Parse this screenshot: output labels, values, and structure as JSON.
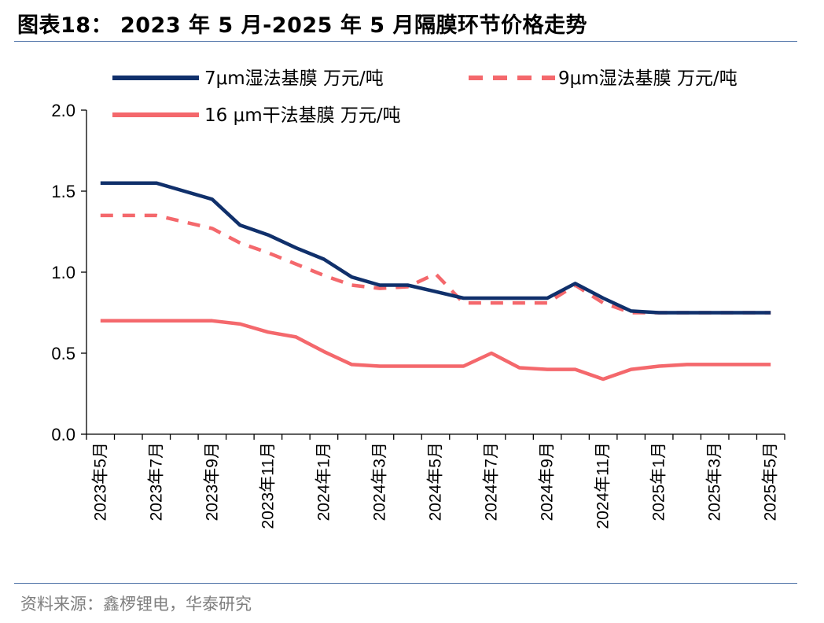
{
  "figure": {
    "title": "图表18： 2023 年 5 月-2025 年 5 月隔膜环节价格走势",
    "source": "资料来源：鑫椤锂电，华泰研究"
  },
  "colors": {
    "navy": "#10306b",
    "salmon": "#f4686c",
    "rule": "#4a6fa5",
    "axis": "#000000"
  },
  "chart_data": {
    "type": "line",
    "title": "",
    "xlabel": "",
    "ylabel": "",
    "ylim": [
      0,
      2.0
    ],
    "yticks": [
      "0.0",
      "0.5",
      "1.0",
      "1.5",
      "2.0"
    ],
    "grid": false,
    "legend_position": "top",
    "x": [
      "2023年5月",
      "2023年6月",
      "2023年7月",
      "2023年8月",
      "2023年9月",
      "2023年10月",
      "2023年11月",
      "2023年12月",
      "2024年1月",
      "2024年2月",
      "2024年3月",
      "2024年4月",
      "2024年5月",
      "2024年6月",
      "2024年7月",
      "2024年8月",
      "2024年9月",
      "2024年10月",
      "2024年11月",
      "2024年12月",
      "2025年1月",
      "2025年2月",
      "2025年3月",
      "2025年4月",
      "2025年5月"
    ],
    "x_tick_labels": [
      "2023年5月",
      "2023年7月",
      "2023年9月",
      "2023年11月",
      "2024年1月",
      "2024年3月",
      "2024年5月",
      "2024年7月",
      "2024年9月",
      "2024年11月",
      "2025年1月",
      "2025年3月",
      "2025年5月"
    ],
    "series": [
      {
        "name": "7μm湿法基膜 万元/吨",
        "color": "#10306b",
        "style": "solid",
        "values": [
          1.55,
          1.55,
          1.55,
          1.5,
          1.45,
          1.29,
          1.23,
          1.15,
          1.08,
          0.97,
          0.92,
          0.92,
          0.88,
          0.84,
          0.84,
          0.84,
          0.84,
          0.93,
          0.84,
          0.76,
          0.75,
          0.75,
          0.75,
          0.75,
          0.75
        ]
      },
      {
        "name": "9μm湿法基膜 万元/吨",
        "color": "#f4686c",
        "style": "dashed",
        "values": [
          1.35,
          1.35,
          1.35,
          1.31,
          1.27,
          1.18,
          1.12,
          1.05,
          0.98,
          0.92,
          0.9,
          0.91,
          0.99,
          0.81,
          0.81,
          0.81,
          0.81,
          0.92,
          0.81,
          0.75,
          0.75,
          0.75,
          0.75,
          0.75,
          0.75
        ]
      },
      {
        "name": "16 μm干法基膜 万元/吨",
        "color": "#f4686c",
        "style": "solid",
        "values": [
          0.7,
          0.7,
          0.7,
          0.7,
          0.7,
          0.68,
          0.63,
          0.6,
          0.51,
          0.43,
          0.42,
          0.42,
          0.42,
          0.42,
          0.5,
          0.41,
          0.4,
          0.4,
          0.34,
          0.4,
          0.42,
          0.43,
          0.43,
          0.43,
          0.43
        ]
      }
    ]
  }
}
